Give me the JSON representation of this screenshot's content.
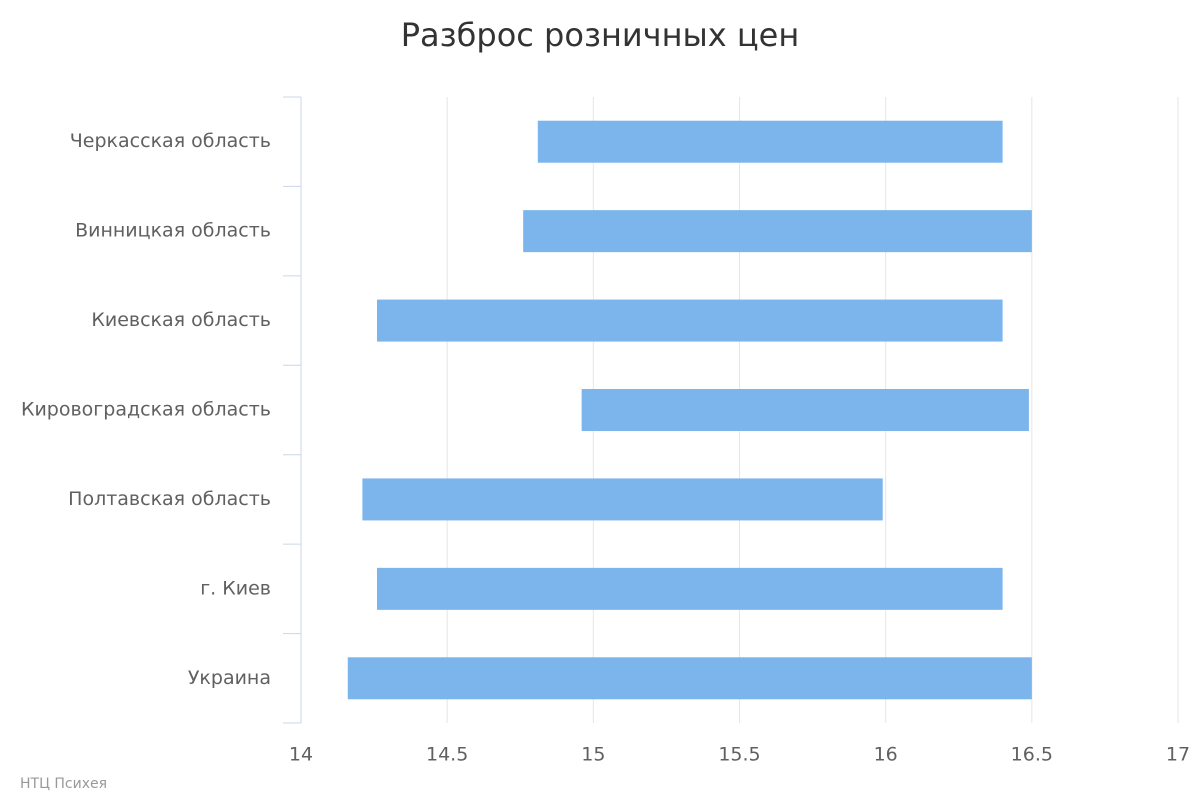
{
  "chart_data": {
    "type": "range-bar",
    "title": "Разброс розничных цен",
    "categories": [
      "Черкасская область",
      "Винницкая область",
      "Киевская область",
      "Кировоградская область",
      "Полтавская область",
      "г. Киев",
      "Украина"
    ],
    "low": [
      14.81,
      14.76,
      14.26,
      14.96,
      14.21,
      14.26,
      14.16
    ],
    "high": [
      16.4,
      16.5,
      16.4,
      16.49,
      15.99,
      16.4,
      16.5
    ],
    "color": "#7cb5ec",
    "xlim": [
      14,
      17
    ],
    "xticks": [
      14,
      14.5,
      15,
      15.5,
      16,
      16.5,
      17
    ],
    "grid": true,
    "credits": "НТЦ Психея"
  }
}
